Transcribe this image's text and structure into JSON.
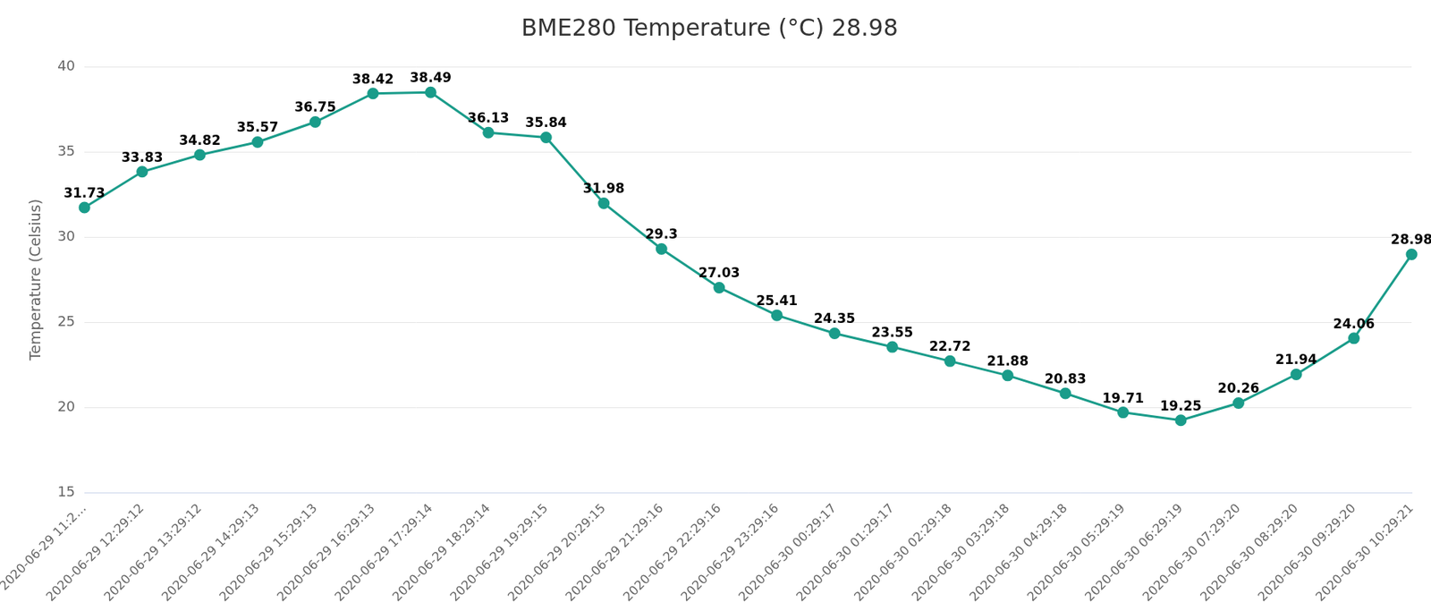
{
  "chart_data": {
    "type": "line",
    "title": "BME280 Temperature (°C) 28.98",
    "y_label": "Temperature (Celsius)",
    "categories": [
      "2020-06-29 11:2…",
      "2020-06-29 12:29:12",
      "2020-06-29 13:29:12",
      "2020-06-29 14:29:13",
      "2020-06-29 15:29:13",
      "2020-06-29 16:29:13",
      "2020-06-29 17:29:14",
      "2020-06-29 18:29:14",
      "2020-06-29 19:29:15",
      "2020-06-29 20:29:15",
      "2020-06-29 21:29:16",
      "2020-06-29 22:29:16",
      "2020-06-29 23:29:16",
      "2020-06-30 00:29:17",
      "2020-06-30 01:29:17",
      "2020-06-30 02:29:18",
      "2020-06-30 03:29:18",
      "2020-06-30 04:29:18",
      "2020-06-30 05:29:19",
      "2020-06-30 06:29:19",
      "2020-06-30 07:29:20",
      "2020-06-30 08:29:20",
      "2020-06-30 09:29:20",
      "2020-06-30 10:29:21"
    ],
    "values": [
      31.73,
      33.83,
      34.82,
      35.57,
      36.75,
      38.42,
      38.49,
      36.13,
      35.84,
      31.98,
      29.3,
      27.03,
      25.41,
      24.35,
      23.55,
      22.72,
      21.88,
      20.83,
      19.71,
      19.25,
      20.26,
      21.94,
      24.06,
      28.98
    ],
    "color": "#1a9c8a",
    "marker": "circle",
    "ylim": [
      15,
      40
    ],
    "yticks": [
      15,
      20,
      25,
      30,
      35,
      40
    ],
    "grid": true,
    "data_labels": true
  }
}
